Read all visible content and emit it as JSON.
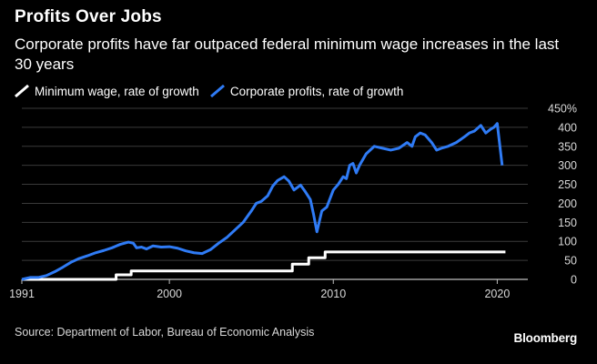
{
  "chart_data": {
    "type": "line",
    "title": "Profits Over Jobs",
    "subtitle": "Corporate profits have far outpaced federal minimum wage increases in the last 30 years",
    "xlabel": "",
    "ylabel": "",
    "xlim": [
      1991,
      2021.2
    ],
    "ylim": [
      0,
      450
    ],
    "grid": true,
    "legend_position": "top-left",
    "x_ticks": [
      1991,
      2000,
      2010,
      2020
    ],
    "x_tick_labels": [
      "1991",
      "2000",
      "2010",
      "2020"
    ],
    "y_ticks": [
      0,
      50,
      100,
      150,
      200,
      250,
      300,
      350,
      400,
      450
    ],
    "y_tick_labels": [
      "0",
      "50",
      "100",
      "150",
      "200",
      "250",
      "300",
      "350",
      "400",
      "450%"
    ],
    "series": [
      {
        "name": "Minimum wage, rate of growth",
        "color": "#ffffff",
        "step": true,
        "x": [
          1991,
          1996.75,
          1997.67,
          2007.5,
          2008.5,
          2009.5,
          2020.5
        ],
        "values": [
          0,
          12,
          22,
          40,
          57,
          72,
          72
        ]
      },
      {
        "name": "Corporate profits, rate of growth",
        "color": "#2f7bf5",
        "step": false,
        "x": [
          1991,
          1991.5,
          1992,
          1992.5,
          1993,
          1993.5,
          1994,
          1994.5,
          1995,
          1995.5,
          1996,
          1996.5,
          1997,
          1997.5,
          1997.8,
          1998,
          1998.3,
          1998.6,
          1999,
          1999.5,
          2000,
          2000.5,
          2001,
          2001.5,
          2002,
          2002.5,
          2003,
          2003.5,
          2004,
          2004.5,
          2005,
          2005.3,
          2005.6,
          2006,
          2006.3,
          2006.6,
          2007,
          2007.3,
          2007.6,
          2008,
          2008.3,
          2008.6,
          2008.8,
          2009,
          2009.3,
          2009.6,
          2010,
          2010.3,
          2010.6,
          2010.8,
          2011,
          2011.2,
          2011.4,
          2011.6,
          2012,
          2012.5,
          2013,
          2013.5,
          2014,
          2014.5,
          2014.8,
          2015,
          2015.3,
          2015.6,
          2016,
          2016.3,
          2016.6,
          2017,
          2017.5,
          2018,
          2018.3,
          2018.6,
          2019,
          2019.3,
          2019.6,
          2019.8,
          2020,
          2020.3
        ],
        "values": [
          0,
          5,
          5,
          10,
          20,
          32,
          45,
          55,
          62,
          70,
          76,
          83,
          92,
          98,
          95,
          83,
          85,
          80,
          88,
          85,
          86,
          82,
          75,
          70,
          68,
          78,
          95,
          110,
          130,
          150,
          180,
          200,
          205,
          220,
          245,
          260,
          270,
          258,
          235,
          248,
          230,
          210,
          170,
          125,
          180,
          190,
          235,
          250,
          270,
          265,
          300,
          305,
          280,
          300,
          330,
          350,
          345,
          340,
          345,
          360,
          350,
          375,
          385,
          380,
          360,
          340,
          345,
          350,
          360,
          375,
          385,
          390,
          405,
          385,
          395,
          400,
          410,
          300
        ]
      }
    ]
  },
  "legend": [
    {
      "label": "Minimum wage, rate of growth",
      "color": "#ffffff"
    },
    {
      "label": "Corporate profits, rate of growth",
      "color": "#2f7bf5"
    }
  ],
  "footer": {
    "source": "Source: Department of Labor, Bureau of Economic Analysis",
    "brand": "Bloomberg"
  },
  "colors": {
    "background": "#000000",
    "grid": "#3a3a3a",
    "axis": "#bfbfbf",
    "tick_text": "#d9d9d9"
  }
}
